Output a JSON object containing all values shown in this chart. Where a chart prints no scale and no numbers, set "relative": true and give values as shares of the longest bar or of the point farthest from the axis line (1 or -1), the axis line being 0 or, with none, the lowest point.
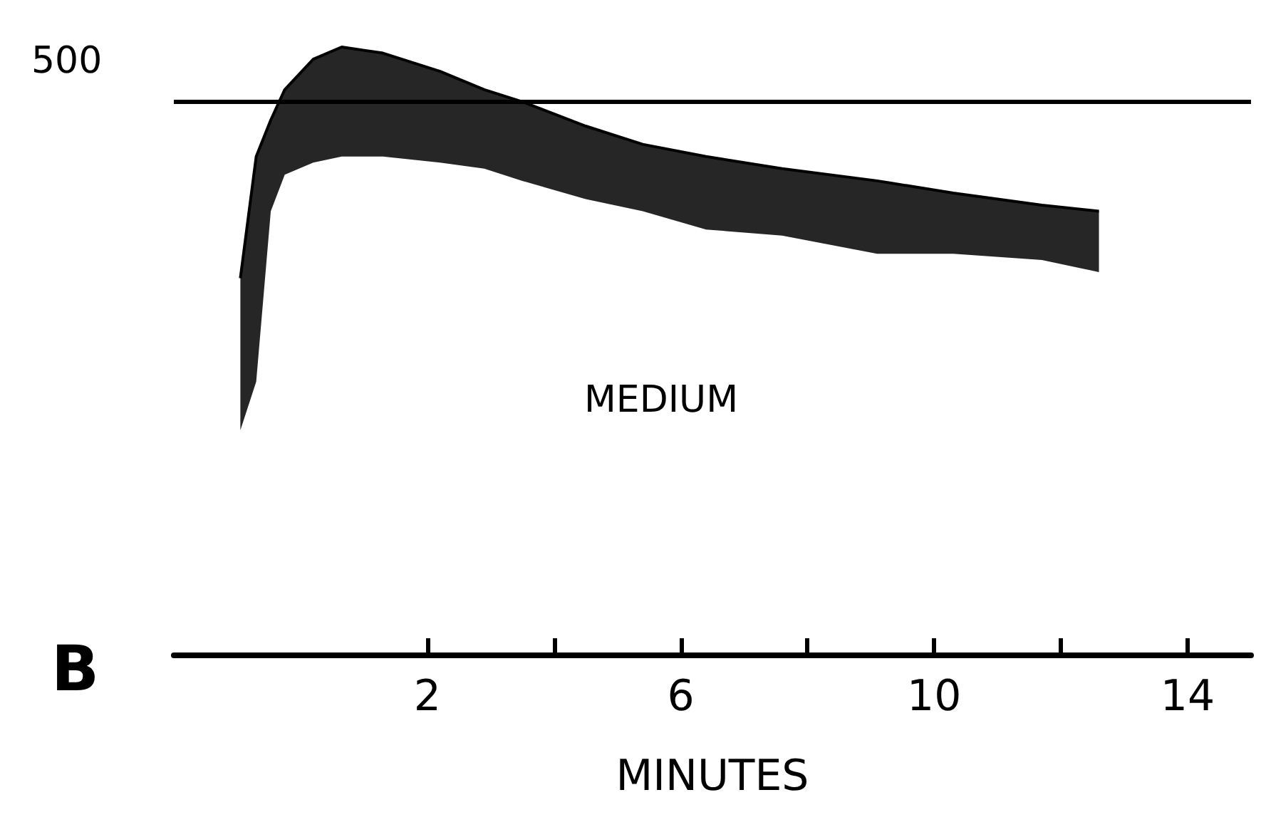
{
  "chart_data": {
    "type": "line",
    "relative": true,
    "xlabel": "MINUTES",
    "annotations": [
      "MEDIUM",
      "B",
      "500"
    ],
    "xlim": [
      -2,
      15
    ],
    "xticks": [
      2,
      {
        "value": 4,
        "label": null
      },
      6,
      {
        "value": 8,
        "label": null
      },
      10,
      {
        "value": 12,
        "label": null
      },
      14
    ],
    "ref_lines": [
      {
        "axis": "y",
        "value": 0.91,
        "color": "#000000"
      }
    ],
    "grid": false,
    "series": [
      {
        "color": "#000000",
        "x": [
          -0.95,
          -0.7,
          -0.47,
          -0.25,
          0.2,
          0.65,
          1.3,
          2.2,
          2.9,
          3.5,
          4.5,
          5.4,
          6.4,
          7.6,
          9.1,
          10.3,
          11.7,
          12.6
        ],
        "values": [
          0.62,
          0.82,
          0.88,
          0.93,
          0.98,
          1,
          0.99,
          0.96,
          0.93,
          0.91,
          0.87,
          0.84,
          0.82,
          0.8,
          0.78,
          0.76,
          0.74,
          0.73
        ],
        "lower": [
          0.37,
          0.45,
          0.73,
          0.79,
          0.81,
          0.82,
          0.82,
          0.81,
          0.8,
          0.78,
          0.75,
          0.73,
          0.7,
          0.69,
          0.66,
          0.66,
          0.65,
          0.63
        ],
        "upper": [
          0.62,
          0.82,
          0.88,
          0.93,
          0.98,
          1,
          0.99,
          0.96,
          0.93,
          0.91,
          0.87,
          0.84,
          0.82,
          0.8,
          0.78,
          0.76,
          0.74,
          0.73
        ]
      }
    ]
  }
}
